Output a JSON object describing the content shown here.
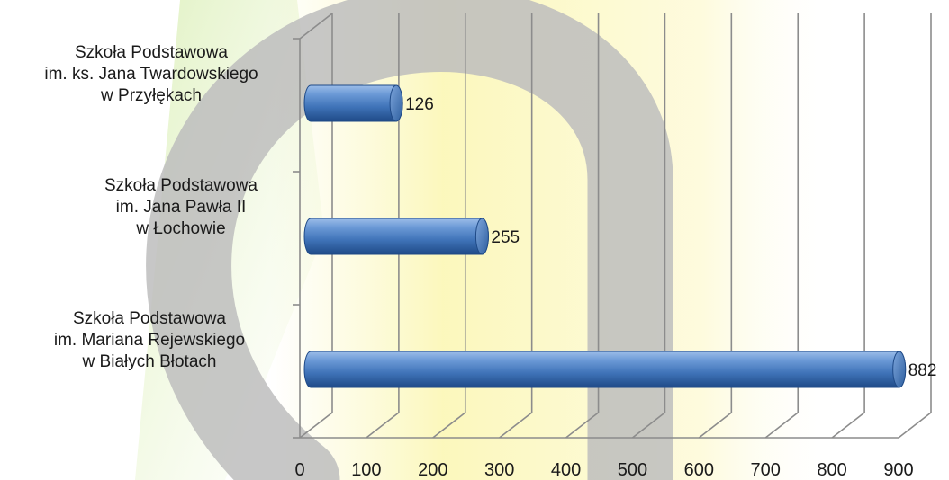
{
  "chart_data": {
    "type": "bar",
    "orientation": "horizontal",
    "style": "3d-cylinder",
    "categories": [
      [
        "Szkoła Podstawowa",
        "im. ks. Jana Twardowskiego",
        "w Przyłękach"
      ],
      [
        "Szkoła Podstawowa",
        "im. Jana Pawła II",
        "w Łochowie"
      ],
      [
        "Szkoła Podstawowa",
        "im. Mariana Rejewskiego",
        "w Białych Błotach"
      ]
    ],
    "values": [
      126,
      255,
      882
    ],
    "x_ticks": [
      "0",
      "100",
      "200",
      "300",
      "400",
      "500",
      "600",
      "700",
      "800",
      "900"
    ],
    "xlim": [
      0,
      900
    ],
    "title": "",
    "xlabel": "",
    "ylabel": "",
    "grid": true,
    "legend": "none",
    "colors": {
      "bar": "#4a7ec4",
      "bar_dark": "#1f4a87",
      "bar_light": "#a9c7ef",
      "grid": "#8c8c8c",
      "watermark_grey": "#b9b9b9",
      "watermark_yellow": "#fbf7b5",
      "watermark_green": "#cfeaa6"
    }
  }
}
